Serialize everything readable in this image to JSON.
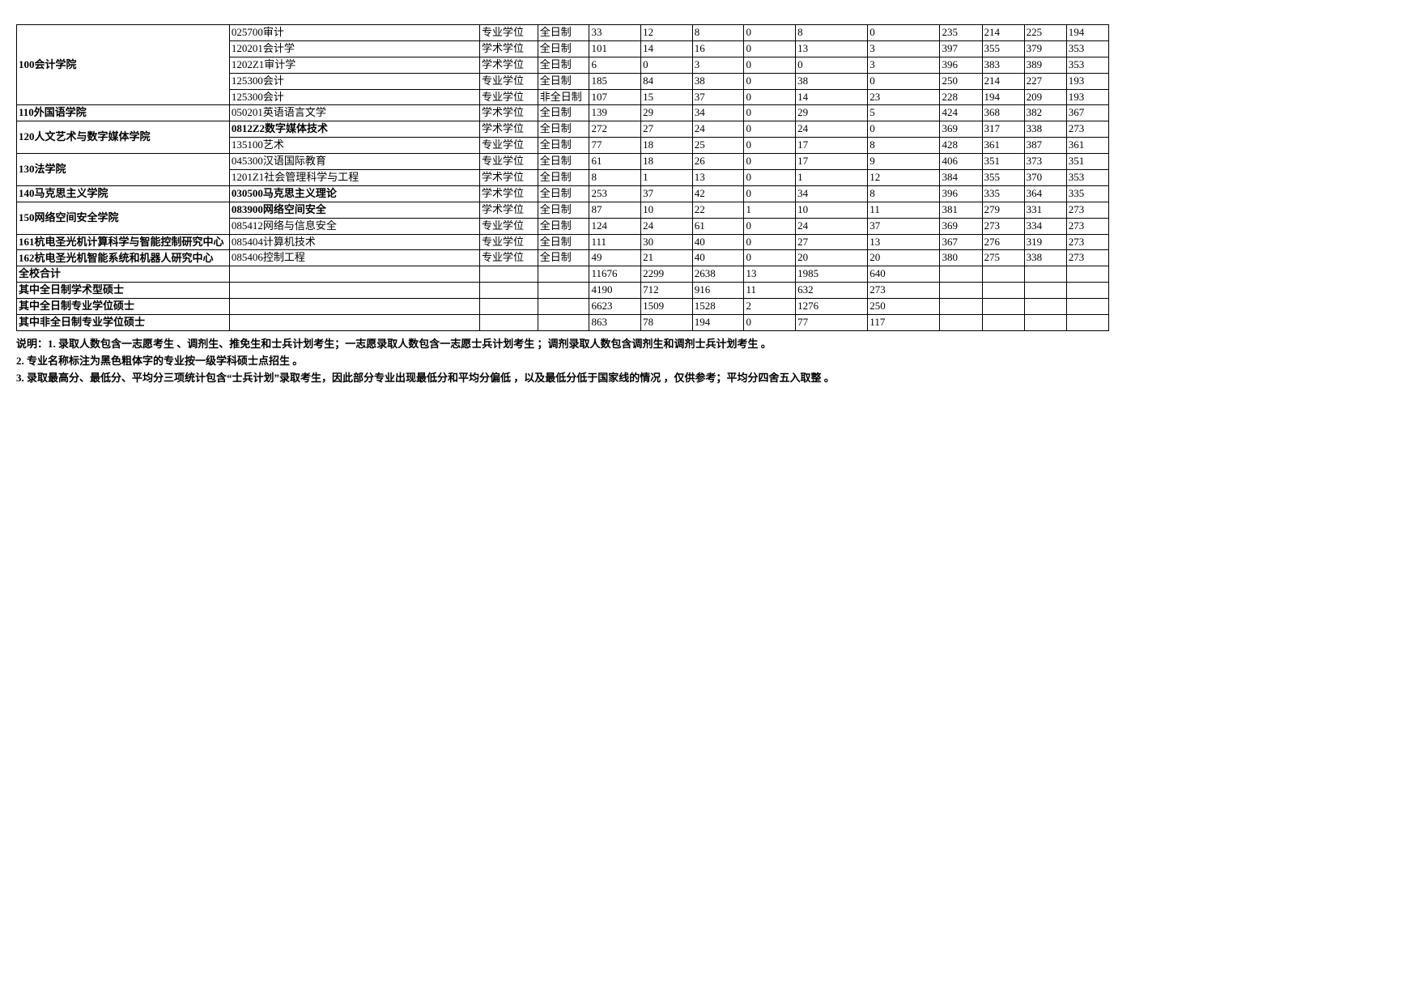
{
  "colors": {
    "border": "#000000",
    "bg": "#ffffff",
    "text": "#000000"
  },
  "font": {
    "family": "SimSun",
    "size_pt": 10
  },
  "table": {
    "rows": [
      {
        "dept": "100会计学院",
        "dept_rowspan": 5,
        "dept_bold": true,
        "major": "025700审计",
        "major_bold": false,
        "type": "专业学位",
        "mode": "全日制",
        "vals": [
          "33",
          "12",
          "8",
          "0",
          "8",
          "0",
          "235",
          "214",
          "225",
          "194"
        ]
      },
      {
        "major": "120201会计学",
        "major_bold": false,
        "type": "学术学位",
        "mode": "全日制",
        "vals": [
          "101",
          "14",
          "16",
          "0",
          "13",
          "3",
          "397",
          "355",
          "379",
          "353"
        ]
      },
      {
        "major": "1202Z1审计学",
        "major_bold": false,
        "type": "学术学位",
        "mode": "全日制",
        "vals": [
          "6",
          "0",
          "3",
          "0",
          "0",
          "3",
          "396",
          "383",
          "389",
          "353"
        ]
      },
      {
        "major": "125300会计",
        "major_bold": false,
        "type": "专业学位",
        "mode": "全日制",
        "vals": [
          "185",
          "84",
          "38",
          "0",
          "38",
          "0",
          "250",
          "214",
          "227",
          "193"
        ]
      },
      {
        "major": "125300会计",
        "major_bold": false,
        "type": "专业学位",
        "mode": "非全日制",
        "vals": [
          "107",
          "15",
          "37",
          "0",
          "14",
          "23",
          "228",
          "194",
          "209",
          "193"
        ]
      },
      {
        "dept": "110外国语学院",
        "dept_rowspan": 1,
        "dept_bold": true,
        "major": "050201英语语言文学",
        "major_bold": false,
        "type": "学术学位",
        "mode": "全日制",
        "vals": [
          "139",
          "29",
          "34",
          "0",
          "29",
          "5",
          "424",
          "368",
          "382",
          "367"
        ]
      },
      {
        "dept": "120人文艺术与数字媒体学院",
        "dept_rowspan": 2,
        "dept_bold": true,
        "major": "0812Z2数字媒体技术",
        "major_bold": true,
        "type": "学术学位",
        "mode": "全日制",
        "vals": [
          "272",
          "27",
          "24",
          "0",
          "24",
          "0",
          "369",
          "317",
          "338",
          "273"
        ]
      },
      {
        "major": "135100艺术",
        "major_bold": false,
        "type": "专业学位",
        "mode": "全日制",
        "vals": [
          "77",
          "18",
          "25",
          "0",
          "17",
          "8",
          "428",
          "361",
          "387",
          "361"
        ]
      },
      {
        "dept": "130法学院",
        "dept_rowspan": 2,
        "dept_bold": true,
        "major": "045300汉语国际教育",
        "major_bold": false,
        "type": "专业学位",
        "mode": "全日制",
        "vals": [
          "61",
          "18",
          "26",
          "0",
          "17",
          "9",
          "406",
          "351",
          "373",
          "351"
        ]
      },
      {
        "major": "1201Z1社会管理科学与工程",
        "major_bold": false,
        "type": "学术学位",
        "mode": "全日制",
        "vals": [
          "8",
          "1",
          "13",
          "0",
          "1",
          "12",
          "384",
          "355",
          "370",
          "353"
        ]
      },
      {
        "dept": "140马克思主义学院",
        "dept_rowspan": 1,
        "dept_bold": true,
        "major": "030500马克思主义理论",
        "major_bold": true,
        "type": "学术学位",
        "mode": "全日制",
        "vals": [
          "253",
          "37",
          "42",
          "0",
          "34",
          "8",
          "396",
          "335",
          "364",
          "335"
        ]
      },
      {
        "dept": "150网络空间安全学院",
        "dept_rowspan": 2,
        "dept_bold": true,
        "major": "083900网络空间安全",
        "major_bold": true,
        "type": "学术学位",
        "mode": "全日制",
        "vals": [
          "87",
          "10",
          "22",
          "1",
          "10",
          "11",
          "381",
          "279",
          "331",
          "273"
        ]
      },
      {
        "major": "085412网络与信息安全",
        "major_bold": false,
        "type": "专业学位",
        "mode": "全日制",
        "vals": [
          "124",
          "24",
          "61",
          "0",
          "24",
          "37",
          "369",
          "273",
          "334",
          "273"
        ]
      },
      {
        "dept": "161杭电圣光机计算科学与智能控制研究中心",
        "dept_rowspan": 1,
        "dept_bold": true,
        "dept_wrap": true,
        "major": "085404计算机技术",
        "major_bold": false,
        "type": "专业学位",
        "mode": "全日制",
        "vals": [
          "111",
          "30",
          "40",
          "0",
          "27",
          "13",
          "367",
          "276",
          "319",
          "273"
        ]
      },
      {
        "dept": "162杭电圣光机智能系统和机器人研究中心",
        "dept_rowspan": 1,
        "dept_bold": true,
        "dept_wrap": true,
        "major": "085406控制工程",
        "major_bold": false,
        "type": "专业学位",
        "mode": "全日制",
        "vals": [
          "49",
          "21",
          "40",
          "0",
          "20",
          "20",
          "380",
          "275",
          "338",
          "273"
        ]
      }
    ],
    "summary": [
      {
        "label": "全校合计",
        "vals": [
          "11676",
          "2299",
          "2638",
          "13",
          "1985",
          "640",
          "",
          "",
          "",
          ""
        ]
      },
      {
        "label": "其中全日制学术型硕士",
        "vals": [
          "4190",
          "712",
          "916",
          "11",
          "632",
          "273",
          "",
          "",
          "",
          ""
        ]
      },
      {
        "label": "其中全日制专业学位硕士",
        "vals": [
          "6623",
          "1509",
          "1528",
          "2",
          "1276",
          "250",
          "",
          "",
          "",
          ""
        ]
      },
      {
        "label": "其中非全日制专业学位硕士",
        "vals": [
          "863",
          "78",
          "194",
          "0",
          "77",
          "117",
          "",
          "",
          "",
          ""
        ]
      }
    ]
  },
  "notes": [
    "说明：1. 录取人数包含一志愿考生 、调剂生、推免生和士兵计划考生；一志愿录取人数包含一志愿士兵计划考生 ；调剂录取人数包含调剂生和调剂士兵计划考生 。",
    "2. 专业名称标注为黑色粗体字的专业按一级学科硕士点招生 。",
    "3. 录取最高分、最低分、平均分三项统计包含“士兵计划”录取考生，因此部分专业出现最低分和平均分偏低 ，以及最低分低于国家线的情况 ，仅供参考；平均分四舍五入取整 。"
  ]
}
